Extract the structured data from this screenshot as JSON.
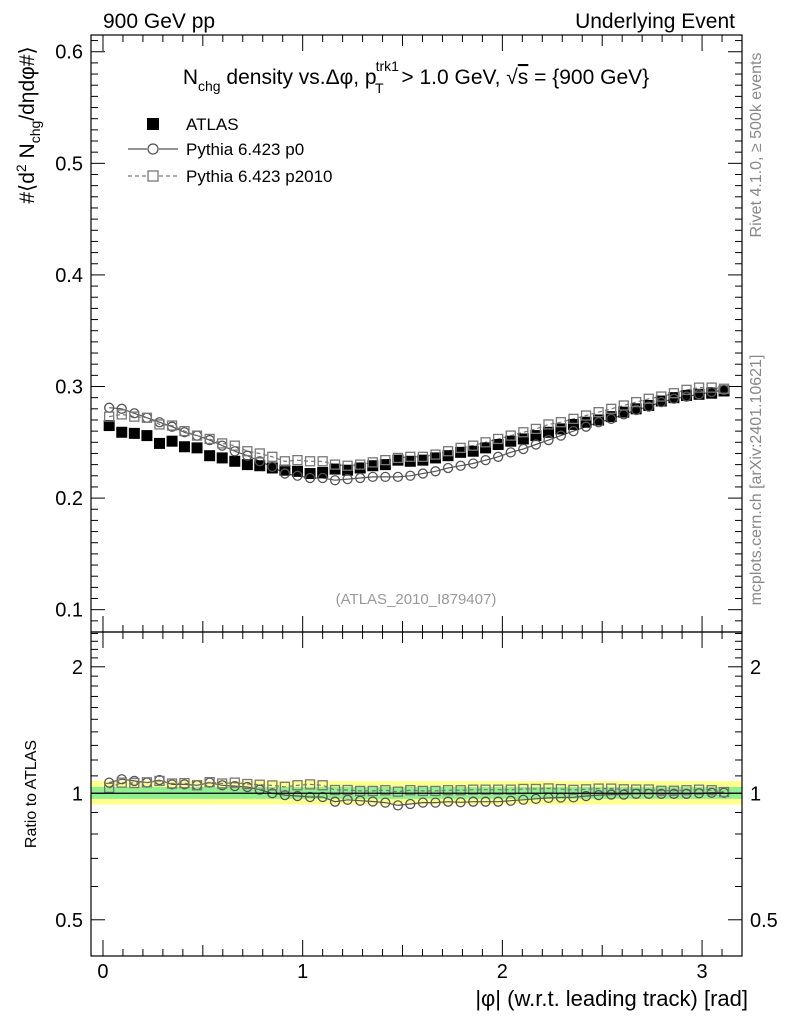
{
  "header": {
    "left": "900 GeV pp",
    "right": "Underlying Event"
  },
  "side_labels": {
    "rivet": "Rivet 4.1.0, ≥ 500k events",
    "mcplots": "mcplots.cern.ch [arXiv:2401.10621]"
  },
  "chart_data": [
    {
      "type": "scatter",
      "panel": "main",
      "title": "N_chg density vs. Δφ, p_T^trk1 > 1.0 GeV, √s = {900 GeV}",
      "title_parts": {
        "n": "N",
        "chg": "chg",
        "mid": " density vs.Δφ, p",
        "trk": "trk1",
        "t": "T",
        "cut": " > 1.0 GeV, ",
        "sqrt": "√",
        "s": "s",
        "energy": " = {900 GeV}"
      },
      "ylabel": "#⟨d² N_chg/dηdφ#⟩",
      "ylabel_parts": {
        "pre": "#⟨d",
        "two": "2",
        "n": " N",
        "chg": "chg",
        "post": "/dηdφ#⟩"
      },
      "ylim": [
        0.08,
        0.615
      ],
      "xlim": [
        -0.06,
        3.2
      ],
      "yticks": [
        0.1,
        0.2,
        0.3,
        0.4,
        0.5,
        0.6
      ],
      "ytick_labels": [
        "0.1",
        "0.2",
        "0.3",
        "0.4",
        "0.5",
        "0.6"
      ],
      "watermark": "(ATLAS_2010_I879407)",
      "legend": [
        {
          "name": "ATLAS",
          "style": "filled-square"
        },
        {
          "name": "Pythia 6.423 p0",
          "style": "solid-line-open-circle"
        },
        {
          "name": "Pythia 6.423 p2010",
          "style": "dashed-line-open-square"
        }
      ],
      "x": [
        0.031,
        0.094,
        0.157,
        0.22,
        0.283,
        0.346,
        0.408,
        0.471,
        0.534,
        0.597,
        0.66,
        0.723,
        0.785,
        0.848,
        0.911,
        0.974,
        1.037,
        1.1,
        1.162,
        1.225,
        1.288,
        1.351,
        1.414,
        1.477,
        1.539,
        1.602,
        1.665,
        1.728,
        1.791,
        1.854,
        1.916,
        1.979,
        2.042,
        2.105,
        2.168,
        2.231,
        2.293,
        2.356,
        2.419,
        2.482,
        2.545,
        2.608,
        2.67,
        2.733,
        2.796,
        2.859,
        2.922,
        2.985,
        3.048,
        3.11
      ],
      "series": [
        {
          "name": "ATLAS",
          "values": [
            0.265,
            0.259,
            0.258,
            0.256,
            0.249,
            0.251,
            0.246,
            0.245,
            0.238,
            0.236,
            0.233,
            0.23,
            0.229,
            0.227,
            0.225,
            0.224,
            0.222,
            0.223,
            0.226,
            0.225,
            0.227,
            0.229,
            0.23,
            0.234,
            0.233,
            0.234,
            0.236,
            0.238,
            0.241,
            0.242,
            0.245,
            0.248,
            0.251,
            0.253,
            0.256,
            0.259,
            0.262,
            0.266,
            0.268,
            0.27,
            0.273,
            0.277,
            0.28,
            0.283,
            0.287,
            0.29,
            0.292,
            0.293,
            0.294,
            0.296
          ]
        },
        {
          "name": "Pythia 6.423 p0",
          "values": [
            0.281,
            0.28,
            0.276,
            0.272,
            0.268,
            0.264,
            0.259,
            0.256,
            0.252,
            0.247,
            0.242,
            0.238,
            0.233,
            0.228,
            0.222,
            0.22,
            0.218,
            0.218,
            0.216,
            0.217,
            0.218,
            0.219,
            0.219,
            0.219,
            0.22,
            0.222,
            0.224,
            0.227,
            0.229,
            0.231,
            0.234,
            0.237,
            0.241,
            0.244,
            0.248,
            0.252,
            0.256,
            0.26,
            0.264,
            0.268,
            0.271,
            0.275,
            0.279,
            0.282,
            0.286,
            0.289,
            0.291,
            0.293,
            0.295,
            0.297
          ]
        },
        {
          "name": "Pythia 6.423 p2010",
          "values": [
            0.273,
            0.275,
            0.273,
            0.272,
            0.266,
            0.265,
            0.26,
            0.256,
            0.253,
            0.249,
            0.247,
            0.242,
            0.24,
            0.237,
            0.233,
            0.234,
            0.233,
            0.233,
            0.23,
            0.229,
            0.23,
            0.232,
            0.234,
            0.236,
            0.237,
            0.237,
            0.239,
            0.242,
            0.245,
            0.247,
            0.25,
            0.253,
            0.256,
            0.259,
            0.262,
            0.266,
            0.268,
            0.271,
            0.274,
            0.277,
            0.28,
            0.283,
            0.286,
            0.289,
            0.291,
            0.294,
            0.297,
            0.299,
            0.299,
            0.298
          ]
        }
      ]
    },
    {
      "type": "scatter",
      "panel": "ratio",
      "ylabel": "Ratio to ATLAS",
      "xlabel": "|φ| (w.r.t. leading track) [rad]",
      "xlabel_parts": {
        "pre": "|",
        "phi": "φ",
        "post": "| (w.r.t. leading track) [rad]"
      },
      "ylim": [
        0.41,
        2.42
      ],
      "xlim": [
        -0.06,
        3.2
      ],
      "yscale": "log",
      "yticks": [
        0.5,
        1,
        2
      ],
      "ytick_labels": [
        "0.5",
        "1",
        "2"
      ],
      "xticks": [
        0,
        1,
        2,
        3
      ],
      "xtick_labels": [
        "0",
        "1",
        "2",
        "3"
      ],
      "band_yellow": [
        0.94,
        1.07
      ],
      "band_green": [
        0.97,
        1.035
      ],
      "series": [
        {
          "name": "Pythia 6.423 p0",
          "values": [
            1.06,
            1.08,
            1.07,
            1.06,
            1.075,
            1.05,
            1.05,
            1.045,
            1.06,
            1.045,
            1.04,
            1.035,
            1.02,
            1.0,
            0.99,
            0.985,
            0.98,
            0.98,
            0.955,
            0.965,
            0.96,
            0.956,
            0.95,
            0.936,
            0.943,
            0.95,
            0.95,
            0.955,
            0.952,
            0.955,
            0.955,
            0.955,
            0.96,
            0.965,
            0.97,
            0.975,
            0.977,
            0.978,
            0.985,
            0.99,
            0.993,
            0.993,
            0.997,
            0.997,
            0.997,
            0.997,
            0.997,
            1.0,
            1.003,
            1.003
          ]
        },
        {
          "name": "Pythia 6.423 p2010",
          "values": [
            1.03,
            1.06,
            1.058,
            1.062,
            1.07,
            1.055,
            1.057,
            1.045,
            1.063,
            1.055,
            1.06,
            1.052,
            1.048,
            1.044,
            1.036,
            1.045,
            1.05,
            1.045,
            1.018,
            1.018,
            1.013,
            1.013,
            1.017,
            1.009,
            1.017,
            1.013,
            1.013,
            1.017,
            1.017,
            1.02,
            1.02,
            1.02,
            1.02,
            1.024,
            1.024,
            1.027,
            1.023,
            1.019,
            1.022,
            1.026,
            1.026,
            1.022,
            1.021,
            1.021,
            1.014,
            1.014,
            1.017,
            1.02,
            1.017,
            1.007
          ]
        }
      ]
    }
  ],
  "colors": {
    "data": "#000000",
    "p0": "#555555",
    "p2010": "#777777",
    "band_yellow": "#ffff8f",
    "band_green": "#8ff08f",
    "side_text": "#888888",
    "watermark": "#999999"
  }
}
